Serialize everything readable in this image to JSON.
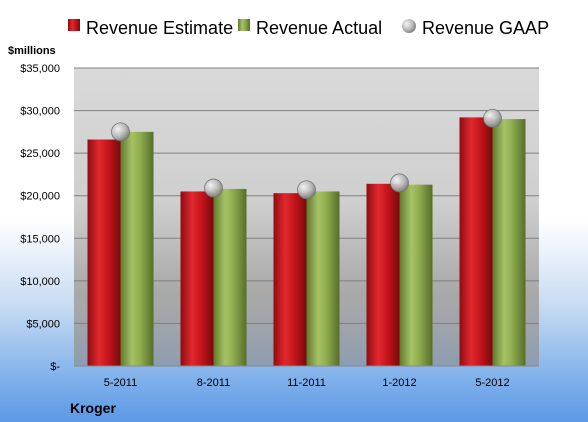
{
  "chart_data": {
    "type": "bar",
    "title": "",
    "ylabel": "$millions",
    "xlabel": "",
    "company": "Kroger",
    "categories": [
      "5-2011",
      "8-2011",
      "11-2011",
      "1-2012",
      "5-2012"
    ],
    "ylim": [
      0,
      35000
    ],
    "y_ticks": [
      0,
      5000,
      10000,
      15000,
      20000,
      25000,
      30000,
      35000
    ],
    "y_tick_labels": [
      "$-",
      "$5,000",
      "$10,000",
      "$15,000",
      "$20,000",
      "$25,000",
      "$30,000",
      "$35,000"
    ],
    "grid": true,
    "legend_position": "top",
    "series": [
      {
        "name": "Revenue Estimate",
        "type": "bar",
        "color": "#c8161d",
        "values": [
          26600,
          20500,
          20300,
          21400,
          29200
        ]
      },
      {
        "name": "Revenue Actual",
        "type": "bar",
        "color": "#8fac4f",
        "values": [
          27500,
          20800,
          20500,
          21300,
          29000
        ]
      },
      {
        "name": "Revenue GAAP",
        "type": "marker",
        "color": "#b8b8b8",
        "values": [
          27500,
          20900,
          20700,
          21500,
          29100
        ]
      }
    ]
  }
}
